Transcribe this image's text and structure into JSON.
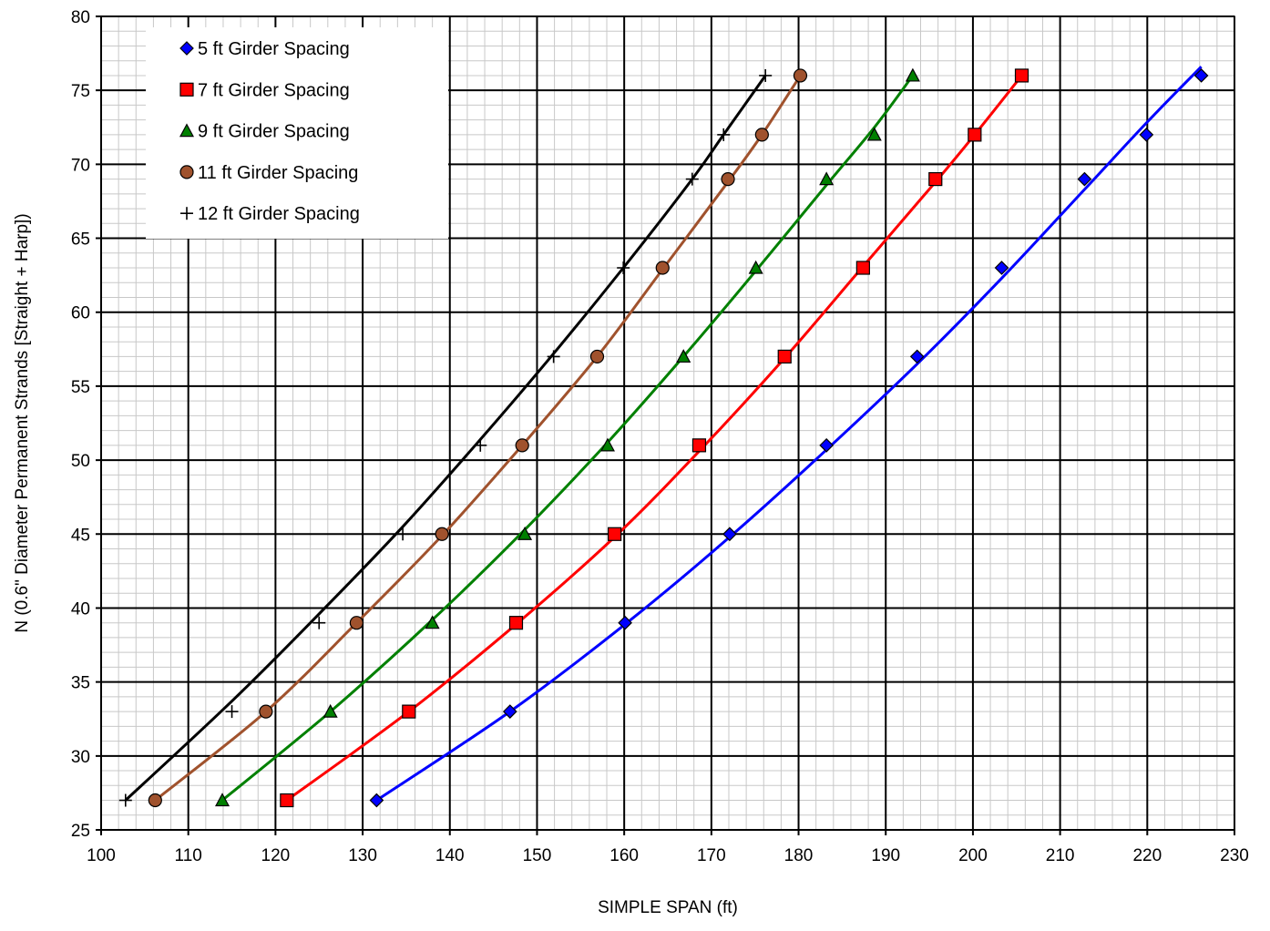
{
  "chart_data": {
    "type": "line",
    "title": "",
    "xlabel": "SIMPLE SPAN (ft)",
    "ylabel": "N (0.6\" Diameter Permanent Strands [Straight + Harp])",
    "xlim": [
      100,
      230
    ],
    "ylim": [
      25,
      80
    ],
    "x_major_step": 10,
    "y_major_step": 5,
    "x_minor_step": 2,
    "y_minor_step": 1,
    "x_ticks": [
      "100",
      "110",
      "120",
      "130",
      "140",
      "150",
      "160",
      "170",
      "180",
      "190",
      "200",
      "210",
      "220",
      "230"
    ],
    "y_ticks": [
      "25",
      "30",
      "35",
      "40",
      "45",
      "50",
      "55",
      "60",
      "65",
      "70",
      "75",
      "80"
    ],
    "grid": true,
    "legend_position": "top-left",
    "series": [
      {
        "name": "5 ft Girder Spacing",
        "marker": "diamond",
        "color": "#0000ff",
        "marker_fill": "#0000ff",
        "points": [
          [
            131.6,
            27
          ],
          [
            146.9,
            33
          ],
          [
            160.1,
            39
          ],
          [
            172.1,
            45
          ],
          [
            183.2,
            51
          ],
          [
            193.6,
            57
          ],
          [
            203.3,
            63
          ],
          [
            212.8,
            69
          ],
          [
            219.9,
            72
          ],
          [
            226.2,
            76
          ]
        ],
        "fit": [
          [
            131.6,
            27
          ],
          [
            146.9,
            33
          ],
          [
            160.1,
            38.9
          ],
          [
            172.1,
            44.8
          ],
          [
            183.2,
            50.7
          ],
          [
            193.6,
            56.5
          ],
          [
            203.3,
            62.3
          ],
          [
            212.8,
            68.3
          ],
          [
            219.9,
            72.8
          ],
          [
            226.2,
            76.6
          ]
        ]
      },
      {
        "name": "7 ft Girder Spacing",
        "marker": "square",
        "color": "#ff0000",
        "marker_fill": "#ff0000",
        "points": [
          [
            121.3,
            27
          ],
          [
            135.3,
            33
          ],
          [
            147.6,
            39
          ],
          [
            158.9,
            45
          ],
          [
            168.6,
            51
          ],
          [
            178.4,
            57
          ],
          [
            187.4,
            63
          ],
          [
            195.7,
            69
          ],
          [
            200.2,
            72
          ],
          [
            205.6,
            76
          ]
        ],
        "fit": [
          [
            121.3,
            27
          ],
          [
            135.3,
            33
          ],
          [
            147.6,
            38.9
          ],
          [
            158.9,
            44.8
          ],
          [
            168.6,
            50.6
          ],
          [
            178.4,
            56.9
          ],
          [
            187.4,
            63.1
          ],
          [
            195.7,
            68.8
          ],
          [
            200.2,
            72
          ],
          [
            205.6,
            76
          ]
        ]
      },
      {
        "name": "9 ft Girder Spacing",
        "marker": "triangle",
        "color": "#008000",
        "marker_fill": "#008000",
        "points": [
          [
            113.9,
            27
          ],
          [
            126.3,
            33
          ],
          [
            138,
            39
          ],
          [
            148.6,
            45
          ],
          [
            158.1,
            51
          ],
          [
            166.8,
            57
          ],
          [
            175.1,
            63
          ],
          [
            183.2,
            69
          ],
          [
            188.7,
            72
          ],
          [
            193.1,
            76
          ]
        ],
        "fit": [
          [
            113.9,
            27
          ],
          [
            126.3,
            33
          ],
          [
            138,
            39.2
          ],
          [
            148.6,
            45.3
          ],
          [
            158.1,
            51.2
          ],
          [
            166.8,
            57
          ],
          [
            175.1,
            62.8
          ],
          [
            183.2,
            68.6
          ],
          [
            188.7,
            72.5
          ],
          [
            193.1,
            76
          ]
        ]
      },
      {
        "name": "11 ft Girder Spacing",
        "marker": "circle",
        "color": "#a0522d",
        "marker_fill": "#a0522d",
        "points": [
          [
            106.2,
            27
          ],
          [
            118.9,
            33
          ],
          [
            129.3,
            39
          ],
          [
            139.1,
            45
          ],
          [
            148.3,
            51
          ],
          [
            156.9,
            57
          ],
          [
            164.4,
            63
          ],
          [
            171.9,
            69
          ],
          [
            175.8,
            72
          ],
          [
            180.2,
            76
          ]
        ],
        "fit": [
          [
            106.2,
            27
          ],
          [
            118.9,
            33
          ],
          [
            129.3,
            39
          ],
          [
            139.1,
            44.9
          ],
          [
            148.3,
            51
          ],
          [
            156.9,
            57
          ],
          [
            164.4,
            62.9
          ],
          [
            171.9,
            68.8
          ],
          [
            175.8,
            72
          ],
          [
            180.2,
            76
          ]
        ]
      },
      {
        "name": "12 ft Girder Spacing",
        "marker": "plus",
        "color": "#000000",
        "marker_fill": "#000000",
        "points": [
          [
            102.8,
            27
          ],
          [
            115,
            33
          ],
          [
            125,
            39
          ],
          [
            134.6,
            45
          ],
          [
            143.5,
            51
          ],
          [
            151.9,
            57
          ],
          [
            159.9,
            63
          ],
          [
            167.8,
            69
          ],
          [
            171.4,
            72
          ],
          [
            176.2,
            76
          ]
        ],
        "fit": [
          [
            102.8,
            27
          ],
          [
            115,
            33.7
          ],
          [
            125,
            39.6
          ],
          [
            134.6,
            45.5
          ],
          [
            143.5,
            51.4
          ],
          [
            151.9,
            57.2
          ],
          [
            159.9,
            63
          ],
          [
            167.8,
            69
          ],
          [
            171.4,
            72
          ],
          [
            176.2,
            76
          ]
        ]
      }
    ]
  }
}
